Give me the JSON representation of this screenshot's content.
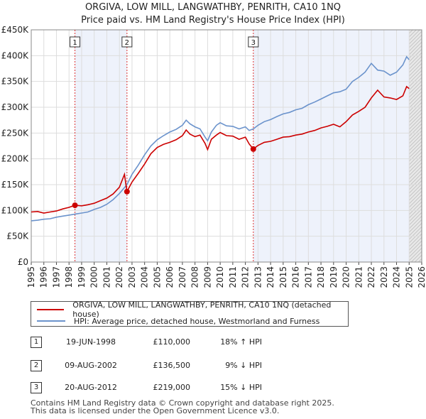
{
  "chart_data": {
    "type": "line",
    "title": "ORGIVA, LOW MILL, LANGWATHBY, PENRITH, CA10 1NQ",
    "subtitle": "Price paid vs. HM Land Registry's House Price Index (HPI)",
    "xlim": [
      1995.0,
      2026.0
    ],
    "ylim": [
      0,
      450000
    ],
    "x_ticks": [
      1995,
      1996,
      1997,
      1998,
      1999,
      2000,
      2001,
      2002,
      2003,
      2004,
      2005,
      2006,
      2007,
      2008,
      2009,
      2010,
      2011,
      2012,
      2013,
      2014,
      2015,
      2016,
      2017,
      2018,
      2019,
      2020,
      2021,
      2022,
      2023,
      2024,
      2025,
      2026
    ],
    "y_ticks": [
      {
        "value": 0,
        "label": "£0"
      },
      {
        "value": 50000,
        "label": "£50K"
      },
      {
        "value": 100000,
        "label": "£100K"
      },
      {
        "value": 150000,
        "label": "£150K"
      },
      {
        "value": 200000,
        "label": "£200K"
      },
      {
        "value": 250000,
        "label": "£250K"
      },
      {
        "value": 300000,
        "label": "£300K"
      },
      {
        "value": 350000,
        "label": "£350K"
      },
      {
        "value": 400000,
        "label": "£400K"
      },
      {
        "value": 450000,
        "label": "£450K"
      }
    ],
    "shaded_periods": [
      [
        1998.47,
        2002.6
      ],
      [
        2012.63,
        2025.0
      ]
    ],
    "forecast_start": 2025.0,
    "series": [
      {
        "name": "ORGIVA, LOW MILL, LANGWATHBY, PENRITH, CA10 1NQ (detached house)",
        "color": "#cc0000",
        "points": [
          [
            1995.0,
            97000
          ],
          [
            1995.5,
            98000
          ],
          [
            1996.0,
            95000
          ],
          [
            1996.5,
            97000
          ],
          [
            1997.0,
            99000
          ],
          [
            1997.5,
            103000
          ],
          [
            1998.0,
            106000
          ],
          [
            1998.47,
            110000
          ],
          [
            1999.0,
            109000
          ],
          [
            1999.5,
            111000
          ],
          [
            2000.0,
            114000
          ],
          [
            2000.5,
            119000
          ],
          [
            2001.0,
            124000
          ],
          [
            2001.5,
            132000
          ],
          [
            2002.0,
            145000
          ],
          [
            2002.4,
            170000
          ],
          [
            2002.6,
            136500
          ],
          [
            2003.0,
            155000
          ],
          [
            2003.5,
            172000
          ],
          [
            2004.0,
            190000
          ],
          [
            2004.5,
            210000
          ],
          [
            2005.0,
            222000
          ],
          [
            2005.5,
            228000
          ],
          [
            2006.0,
            232000
          ],
          [
            2006.5,
            237000
          ],
          [
            2007.0,
            245000
          ],
          [
            2007.3,
            256000
          ],
          [
            2007.6,
            248000
          ],
          [
            2008.0,
            243000
          ],
          [
            2008.4,
            246000
          ],
          [
            2008.8,
            230000
          ],
          [
            2009.0,
            218000
          ],
          [
            2009.3,
            238000
          ],
          [
            2009.7,
            246000
          ],
          [
            2010.0,
            251000
          ],
          [
            2010.5,
            245000
          ],
          [
            2011.0,
            244000
          ],
          [
            2011.5,
            238000
          ],
          [
            2012.0,
            242000
          ],
          [
            2012.3,
            229000
          ],
          [
            2012.63,
            219000
          ],
          [
            2013.0,
            226000
          ],
          [
            2013.5,
            232000
          ],
          [
            2014.0,
            234000
          ],
          [
            2014.5,
            238000
          ],
          [
            2015.0,
            242000
          ],
          [
            2015.5,
            243000
          ],
          [
            2016.0,
            246000
          ],
          [
            2016.5,
            248000
          ],
          [
            2017.0,
            252000
          ],
          [
            2017.5,
            255000
          ],
          [
            2018.0,
            260000
          ],
          [
            2018.5,
            263000
          ],
          [
            2019.0,
            267000
          ],
          [
            2019.5,
            262000
          ],
          [
            2020.0,
            272000
          ],
          [
            2020.5,
            285000
          ],
          [
            2021.0,
            292000
          ],
          [
            2021.5,
            300000
          ],
          [
            2022.0,
            318000
          ],
          [
            2022.5,
            333000
          ],
          [
            2023.0,
            320000
          ],
          [
            2023.5,
            318000
          ],
          [
            2024.0,
            315000
          ],
          [
            2024.5,
            322000
          ],
          [
            2024.8,
            340000
          ],
          [
            2025.0,
            336000
          ]
        ]
      },
      {
        "name": "HPI: Average price, detached house, Westmorland and Furness",
        "color": "#6b93cc",
        "points": [
          [
            1995.0,
            80000
          ],
          [
            1995.5,
            81000
          ],
          [
            1996.0,
            83000
          ],
          [
            1996.5,
            84000
          ],
          [
            1997.0,
            87000
          ],
          [
            1997.5,
            89000
          ],
          [
            1998.0,
            91000
          ],
          [
            1998.5,
            93000
          ],
          [
            1999.0,
            95000
          ],
          [
            1999.5,
            97000
          ],
          [
            2000.0,
            102000
          ],
          [
            2000.5,
            106000
          ],
          [
            2001.0,
            112000
          ],
          [
            2001.5,
            121000
          ],
          [
            2002.0,
            133000
          ],
          [
            2002.6,
            150000
          ],
          [
            2003.0,
            170000
          ],
          [
            2003.5,
            188000
          ],
          [
            2004.0,
            208000
          ],
          [
            2004.5,
            225000
          ],
          [
            2005.0,
            237000
          ],
          [
            2005.5,
            245000
          ],
          [
            2006.0,
            252000
          ],
          [
            2006.5,
            257000
          ],
          [
            2007.0,
            265000
          ],
          [
            2007.3,
            275000
          ],
          [
            2007.6,
            268000
          ],
          [
            2008.0,
            262000
          ],
          [
            2008.4,
            258000
          ],
          [
            2008.8,
            242000
          ],
          [
            2009.0,
            235000
          ],
          [
            2009.3,
            252000
          ],
          [
            2009.7,
            265000
          ],
          [
            2010.0,
            270000
          ],
          [
            2010.5,
            264000
          ],
          [
            2011.0,
            263000
          ],
          [
            2011.5,
            258000
          ],
          [
            2012.0,
            262000
          ],
          [
            2012.3,
            255000
          ],
          [
            2012.63,
            258000
          ],
          [
            2013.0,
            265000
          ],
          [
            2013.5,
            272000
          ],
          [
            2014.0,
            276000
          ],
          [
            2014.5,
            282000
          ],
          [
            2015.0,
            287000
          ],
          [
            2015.5,
            290000
          ],
          [
            2016.0,
            295000
          ],
          [
            2016.5,
            298000
          ],
          [
            2017.0,
            305000
          ],
          [
            2017.5,
            310000
          ],
          [
            2018.0,
            316000
          ],
          [
            2018.5,
            322000
          ],
          [
            2019.0,
            328000
          ],
          [
            2019.5,
            330000
          ],
          [
            2020.0,
            335000
          ],
          [
            2020.5,
            350000
          ],
          [
            2021.0,
            358000
          ],
          [
            2021.5,
            368000
          ],
          [
            2022.0,
            385000
          ],
          [
            2022.5,
            372000
          ],
          [
            2023.0,
            370000
          ],
          [
            2023.5,
            362000
          ],
          [
            2024.0,
            368000
          ],
          [
            2024.5,
            382000
          ],
          [
            2024.8,
            398000
          ],
          [
            2025.0,
            392000
          ]
        ]
      }
    ],
    "sale_markers": [
      {
        "label": "1",
        "x": 1998.47,
        "y": 110000
      },
      {
        "label": "2",
        "x": 2002.6,
        "y": 136500
      },
      {
        "label": "3",
        "x": 2012.63,
        "y": 219000
      }
    ]
  },
  "legend": {
    "items": [
      {
        "label": "ORGIVA, LOW MILL, LANGWATHBY, PENRITH, CA10 1NQ (detached house)",
        "color": "#cc0000"
      },
      {
        "label": "HPI: Average price, detached house, Westmorland and Furness",
        "color": "#6b93cc"
      }
    ]
  },
  "sales": [
    {
      "num": "1",
      "date": "19-JUN-1998",
      "price": "£110,000",
      "diff": "18% ↑ HPI"
    },
    {
      "num": "2",
      "date": "09-AUG-2002",
      "price": "£136,500",
      "diff": "9% ↓ HPI"
    },
    {
      "num": "3",
      "date": "20-AUG-2012",
      "price": "£219,000",
      "diff": "15% ↓ HPI"
    }
  ],
  "footer": {
    "line1": "Contains HM Land Registry data © Crown copyright and database right 2025.",
    "line2": "This data is licensed under the Open Government Licence v3.0."
  }
}
